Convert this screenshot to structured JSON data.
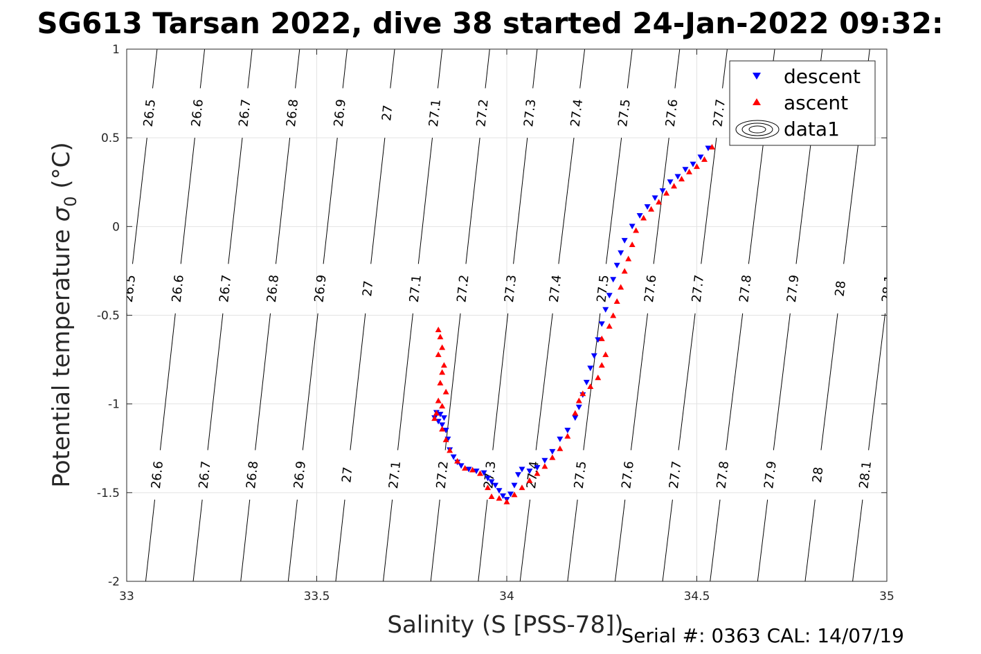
{
  "chart_data": {
    "type": "scatter",
    "title": "SG613 Tarsan 2022, dive 38 started 24-Jan-2022 09:32:",
    "xlabel": "Salinity (S [PSS-78])",
    "ylabel_prefix": "Potential temperature ",
    "ylabel_sigma": "σ",
    "ylabel_sub": "0",
    "ylabel_suffix": " (°C)",
    "xlim": [
      33,
      35
    ],
    "ylim": [
      -2,
      1
    ],
    "xticks": [
      33,
      33.5,
      34,
      34.5,
      35
    ],
    "xtick_labels": [
      "33",
      "33.5",
      "34",
      "34.5",
      "35"
    ],
    "yticks": [
      -2,
      -1.5,
      -1,
      -0.5,
      0,
      0.5,
      1
    ],
    "ytick_labels": [
      "-2",
      "-1.5",
      "-1",
      "-0.5",
      "0",
      "0.5",
      "1"
    ],
    "grid": true,
    "legend_position": "top-right",
    "legend": [
      "descent",
      "ascent",
      "data1"
    ],
    "isopycnals": [
      {
        "sigma": 26.5,
        "label": "26.5",
        "x_at_bottom": 32.92,
        "x_at_top": 33.08
      },
      {
        "sigma": 26.6,
        "label": "26.6",
        "x_at_bottom": 33.05,
        "x_at_top": 33.205
      },
      {
        "sigma": 26.7,
        "label": "26.7",
        "x_at_bottom": 33.175,
        "x_at_top": 33.33
      },
      {
        "sigma": 26.8,
        "label": "26.8",
        "x_at_bottom": 33.3,
        "x_at_top": 33.455
      },
      {
        "sigma": 26.9,
        "label": "26.9",
        "x_at_bottom": 33.425,
        "x_at_top": 33.58
      },
      {
        "sigma": 27.0,
        "label": "27",
        "x_at_bottom": 33.55,
        "x_at_top": 33.705
      },
      {
        "sigma": 27.1,
        "label": "27.1",
        "x_at_bottom": 33.675,
        "x_at_top": 33.83
      },
      {
        "sigma": 27.2,
        "label": "27.2",
        "x_at_bottom": 33.8,
        "x_at_top": 33.955
      },
      {
        "sigma": 27.3,
        "label": "27.3",
        "x_at_bottom": 33.925,
        "x_at_top": 34.08
      },
      {
        "sigma": 27.4,
        "label": "27.4",
        "x_at_bottom": 34.035,
        "x_at_top": 34.205
      },
      {
        "sigma": 27.5,
        "label": "27.5",
        "x_at_bottom": 34.16,
        "x_at_top": 34.33
      },
      {
        "sigma": 27.6,
        "label": "27.6",
        "x_at_bottom": 34.285,
        "x_at_top": 34.455
      },
      {
        "sigma": 27.7,
        "label": "27.7",
        "x_at_bottom": 34.41,
        "x_at_top": 34.58
      },
      {
        "sigma": 27.8,
        "label": "27.8",
        "x_at_bottom": 34.535,
        "x_at_top": 34.705
      },
      {
        "sigma": 27.9,
        "label": "27.9",
        "x_at_bottom": 34.66,
        "x_at_top": 34.83
      },
      {
        "sigma": 28.0,
        "label": "28",
        "x_at_bottom": 34.785,
        "x_at_top": 34.955
      },
      {
        "sigma": 28.1,
        "label": "28.1",
        "x_at_bottom": 34.91,
        "x_at_top": 35.08
      }
    ],
    "series": [
      {
        "name": "descent",
        "color": "#0000ff",
        "marker": "triangle-down",
        "points": [
          [
            33.81,
            -1.08
          ],
          [
            33.815,
            -1.05
          ],
          [
            33.82,
            -1.1
          ],
          [
            33.825,
            -1.06
          ],
          [
            33.83,
            -1.12
          ],
          [
            33.835,
            -1.08
          ],
          [
            33.84,
            -1.15
          ],
          [
            33.845,
            -1.2
          ],
          [
            33.85,
            -1.26
          ],
          [
            33.86,
            -1.3
          ],
          [
            33.87,
            -1.33
          ],
          [
            33.88,
            -1.35
          ],
          [
            33.9,
            -1.37
          ],
          [
            33.92,
            -1.38
          ],
          [
            33.94,
            -1.39
          ],
          [
            33.95,
            -1.42
          ],
          [
            33.96,
            -1.44
          ],
          [
            33.97,
            -1.46
          ],
          [
            33.98,
            -1.49
          ],
          [
            33.99,
            -1.52
          ],
          [
            34.0,
            -1.54
          ],
          [
            34.01,
            -1.51
          ],
          [
            34.02,
            -1.46
          ],
          [
            34.03,
            -1.4
          ],
          [
            34.04,
            -1.37
          ],
          [
            34.06,
            -1.38
          ],
          [
            34.08,
            -1.36
          ],
          [
            34.1,
            -1.32
          ],
          [
            34.12,
            -1.27
          ],
          [
            34.14,
            -1.2
          ],
          [
            34.16,
            -1.15
          ],
          [
            34.18,
            -1.08
          ],
          [
            34.19,
            -1.02
          ],
          [
            34.2,
            -0.95
          ],
          [
            34.21,
            -0.88
          ],
          [
            34.22,
            -0.8
          ],
          [
            34.23,
            -0.73
          ],
          [
            34.24,
            -0.64
          ],
          [
            34.25,
            -0.55
          ],
          [
            34.26,
            -0.47
          ],
          [
            34.27,
            -0.39
          ],
          [
            34.28,
            -0.3
          ],
          [
            34.29,
            -0.22
          ],
          [
            34.3,
            -0.15
          ],
          [
            34.31,
            -0.08
          ],
          [
            34.33,
            0.0
          ],
          [
            34.35,
            0.06
          ],
          [
            34.37,
            0.11
          ],
          [
            34.39,
            0.16
          ],
          [
            34.41,
            0.2
          ],
          [
            34.43,
            0.25
          ],
          [
            34.45,
            0.28
          ],
          [
            34.47,
            0.32
          ],
          [
            34.49,
            0.35
          ],
          [
            34.51,
            0.39
          ],
          [
            34.53,
            0.44
          ]
        ]
      },
      {
        "name": "ascent",
        "color": "#ff0000",
        "marker": "triangle-up",
        "points": [
          [
            33.82,
            -0.58
          ],
          [
            33.825,
            -0.62
          ],
          [
            33.83,
            -0.68
          ],
          [
            33.82,
            -0.72
          ],
          [
            33.835,
            -0.78
          ],
          [
            33.83,
            -0.82
          ],
          [
            33.825,
            -0.88
          ],
          [
            33.84,
            -0.93
          ],
          [
            33.82,
            -0.98
          ],
          [
            33.83,
            -1.01
          ],
          [
            33.815,
            -1.05
          ],
          [
            33.81,
            -1.08
          ],
          [
            33.83,
            -1.14
          ],
          [
            33.84,
            -1.2
          ],
          [
            33.85,
            -1.26
          ],
          [
            33.87,
            -1.32
          ],
          [
            33.89,
            -1.36
          ],
          [
            33.91,
            -1.37
          ],
          [
            33.93,
            -1.39
          ],
          [
            33.95,
            -1.47
          ],
          [
            33.96,
            -1.52
          ],
          [
            33.98,
            -1.53
          ],
          [
            34.0,
            -1.55
          ],
          [
            34.02,
            -1.51
          ],
          [
            34.04,
            -1.47
          ],
          [
            34.06,
            -1.43
          ],
          [
            34.08,
            -1.39
          ],
          [
            34.1,
            -1.35
          ],
          [
            34.12,
            -1.3
          ],
          [
            34.14,
            -1.25
          ],
          [
            34.16,
            -1.18
          ],
          [
            34.18,
            -1.05
          ],
          [
            34.19,
            -0.98
          ],
          [
            34.2,
            -0.94
          ],
          [
            34.22,
            -0.9
          ],
          [
            34.24,
            -0.85
          ],
          [
            34.25,
            -0.78
          ],
          [
            34.26,
            -0.72
          ],
          [
            34.25,
            -0.63
          ],
          [
            34.27,
            -0.56
          ],
          [
            34.28,
            -0.5
          ],
          [
            34.29,
            -0.42
          ],
          [
            34.3,
            -0.34
          ],
          [
            34.31,
            -0.25
          ],
          [
            34.32,
            -0.18
          ],
          [
            34.33,
            -0.1
          ],
          [
            34.34,
            -0.02
          ],
          [
            34.36,
            0.05
          ],
          [
            34.38,
            0.1
          ],
          [
            34.4,
            0.14
          ],
          [
            34.42,
            0.19
          ],
          [
            34.44,
            0.23
          ],
          [
            34.46,
            0.27
          ],
          [
            34.48,
            0.31
          ],
          [
            34.5,
            0.34
          ],
          [
            34.52,
            0.38
          ],
          [
            34.54,
            0.45
          ]
        ]
      }
    ]
  },
  "footer": {
    "serial": "Serial #: 0363  CAL: 14/07/19"
  }
}
